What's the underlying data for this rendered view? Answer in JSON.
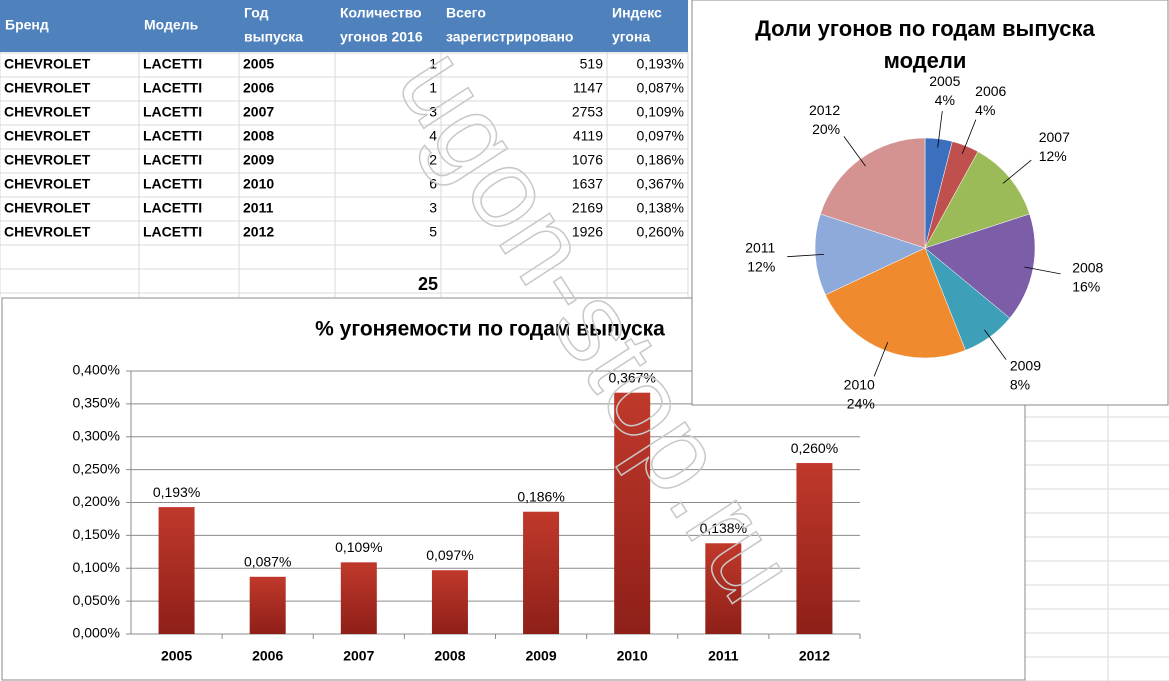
{
  "table": {
    "header": [
      [
        "Бренд"
      ],
      [
        "Модель"
      ],
      [
        "Год",
        "выпуска"
      ],
      [
        "Количество",
        "угонов 2016"
      ],
      [
        "Всего",
        "зарегистрировано"
      ],
      [
        "Индекс",
        "угона"
      ]
    ],
    "rows": [
      [
        "CHEVROLET",
        "LACETTI",
        "2005",
        "1",
        "519",
        "0,193%"
      ],
      [
        "CHEVROLET",
        "LACETTI",
        "2006",
        "1",
        "1147",
        "0,087%"
      ],
      [
        "CHEVROLET",
        "LACETTI",
        "2007",
        "3",
        "2753",
        "0,109%"
      ],
      [
        "CHEVROLET",
        "LACETTI",
        "2008",
        "4",
        "4119",
        "0,097%"
      ],
      [
        "CHEVROLET",
        "LACETTI",
        "2009",
        "2",
        "1076",
        "0,186%"
      ],
      [
        "CHEVROLET",
        "LACETTI",
        "2010",
        "6",
        "1637",
        "0,367%"
      ],
      [
        "CHEVROLET",
        "LACETTI",
        "2011",
        "3",
        "2169",
        "0,138%"
      ],
      [
        "CHEVROLET",
        "LACETTI",
        "2012",
        "5",
        "1926",
        "0,260%"
      ]
    ],
    "total": "25"
  },
  "watermark": "ugon-stop.ru",
  "chart_data": [
    {
      "type": "bar",
      "title": "% угоняемости по годам выпуска",
      "categories": [
        "2005",
        "2006",
        "2007",
        "2008",
        "2009",
        "2010",
        "2011",
        "2012"
      ],
      "values": [
        0.193,
        0.087,
        0.109,
        0.097,
        0.186,
        0.367,
        0.138,
        0.26
      ],
      "value_labels": [
        "0,193%",
        "0,087%",
        "0,109%",
        "0,097%",
        "0,186%",
        "0,367%",
        "0,138%",
        "0,260%"
      ],
      "color": "#c0392b",
      "ylim": [
        0,
        0.4
      ],
      "yticks": [
        {
          "value": 0,
          "label": "0,000%"
        },
        {
          "value": 0.05,
          "label": "0,050%"
        },
        {
          "value": 0.1,
          "label": "0,100%"
        },
        {
          "value": 0.15,
          "label": "0,150%"
        },
        {
          "value": 0.2,
          "label": "0,200%"
        },
        {
          "value": 0.25,
          "label": "0,250%"
        },
        {
          "value": 0.3,
          "label": "0,300%"
        },
        {
          "value": 0.35,
          "label": "0,350%"
        },
        {
          "value": 0.4,
          "label": "0,400%"
        }
      ],
      "grid": true
    },
    {
      "type": "pie",
      "title": [
        "Доли угонов по годам выпуска",
        "модели"
      ],
      "categories": [
        "2005",
        "2006",
        "2007",
        "2008",
        "2009",
        "2010",
        "2011",
        "2012"
      ],
      "values": [
        4,
        4,
        12,
        16,
        8,
        24,
        12,
        20
      ],
      "value_labels": [
        "4%",
        "4%",
        "12%",
        "16%",
        "8%",
        "24%",
        "12%",
        "20%"
      ],
      "colors": [
        "#3d6fbf",
        "#c0504d",
        "#9bbb59",
        "#7b5ea7",
        "#3e9fb8",
        "#ef8a2f",
        "#8eaadb",
        "#d49391"
      ]
    }
  ]
}
